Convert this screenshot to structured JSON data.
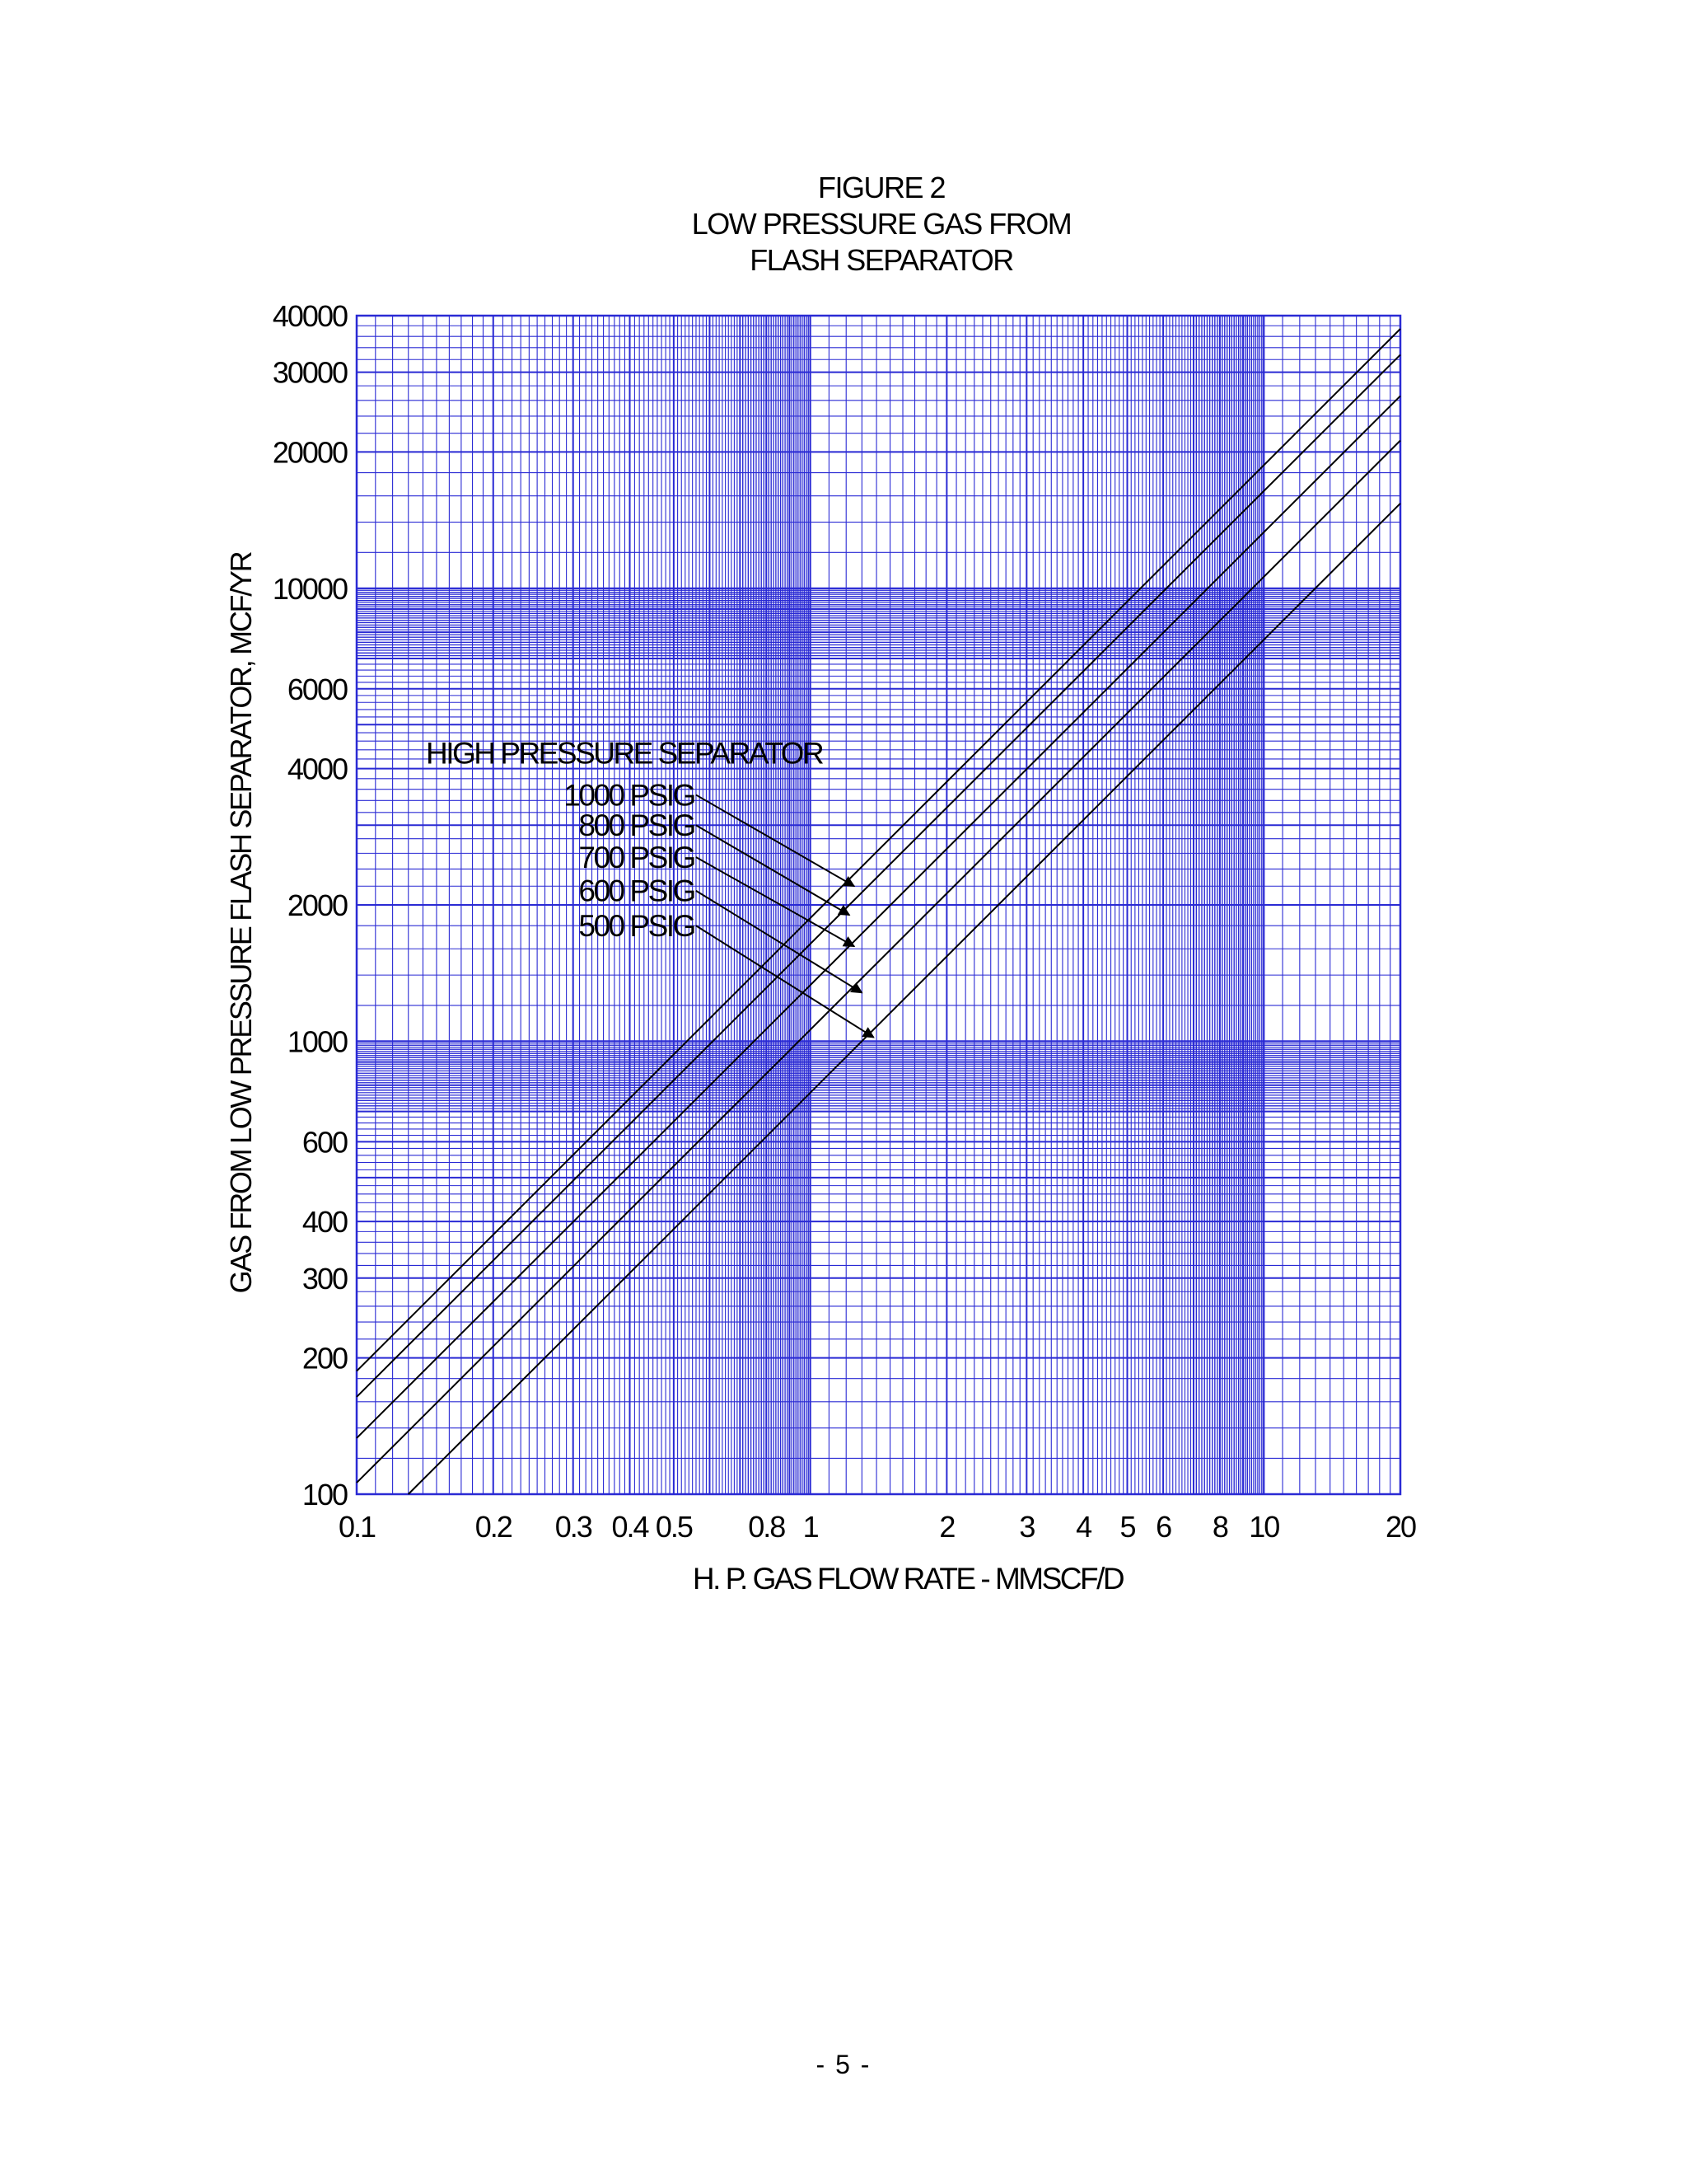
{
  "chart_data": {
    "type": "line",
    "scale": "log-log",
    "title_lines": [
      "FIGURE 2",
      "LOW PRESSURE GAS FROM",
      "FLASH SEPARATOR"
    ],
    "xlabel": "H. P. GAS FLOW RATE - MMSCF/D",
    "ylabel": "GAS FROM LOW PRESSURE FLASH SEPARATOR, MCF/YR",
    "xlim": [
      0.1,
      20
    ],
    "ylim": [
      100,
      40000
    ],
    "grid": true,
    "x_ticks": [
      {
        "value": 0.1,
        "label": "0.1"
      },
      {
        "value": 0.2,
        "label": "0.2"
      },
      {
        "value": 0.3,
        "label": "0.3"
      },
      {
        "value": 0.4,
        "label": "0.4"
      },
      {
        "value": 0.5,
        "label": "0.5"
      },
      {
        "value": 0.8,
        "label": "0.8"
      },
      {
        "value": 1,
        "label": "1"
      },
      {
        "value": 2,
        "label": "2"
      },
      {
        "value": 3,
        "label": "3"
      },
      {
        "value": 4,
        "label": "4"
      },
      {
        "value": 5,
        "label": "5"
      },
      {
        "value": 6,
        "label": "6"
      },
      {
        "value": 8,
        "label": "8"
      },
      {
        "value": 10,
        "label": "10"
      },
      {
        "value": 20,
        "label": "20"
      }
    ],
    "y_ticks": [
      {
        "value": 100,
        "label": "100"
      },
      {
        "value": 200,
        "label": "200"
      },
      {
        "value": 300,
        "label": "300"
      },
      {
        "value": 400,
        "label": "400"
      },
      {
        "value": 600,
        "label": "600"
      },
      {
        "value": 1000,
        "label": "1000"
      },
      {
        "value": 2000,
        "label": "2000"
      },
      {
        "value": 4000,
        "label": "4000"
      },
      {
        "value": 6000,
        "label": "6000"
      },
      {
        "value": 10000,
        "label": "10000"
      },
      {
        "value": 20000,
        "label": "20000"
      },
      {
        "value": 30000,
        "label": "30000"
      },
      {
        "value": 40000,
        "label": "40000"
      }
    ],
    "legend_title": "HIGH PRESSURE SEPARATOR",
    "series": [
      {
        "name": "1000 PSIG",
        "x": [
          0.1,
          20
        ],
        "y": [
          187,
          37400
        ],
        "label_anchor": [
          0.555,
          3500
        ],
        "arrow_tip": [
          1.25,
          2200
        ]
      },
      {
        "name": "800 PSIG",
        "x": [
          0.1,
          20
        ],
        "y": [
          164,
          32800
        ],
        "label_anchor": [
          0.555,
          3000
        ],
        "arrow_tip": [
          1.22,
          1900
        ]
      },
      {
        "name": "700 PSIG",
        "x": [
          0.1,
          20
        ],
        "y": [
          133,
          26600
        ],
        "label_anchor": [
          0.555,
          2550
        ],
        "arrow_tip": [
          1.25,
          1620
        ]
      },
      {
        "name": "600 PSIG",
        "x": [
          0.1,
          20
        ],
        "y": [
          106,
          21200
        ],
        "label_anchor": [
          0.555,
          2150
        ],
        "arrow_tip": [
          1.3,
          1280
        ]
      },
      {
        "name": "500 PSIG",
        "x": [
          0.13,
          20
        ],
        "y": [
          100,
          15400
        ],
        "label_anchor": [
          0.555,
          1800
        ],
        "arrow_tip": [
          1.38,
          1020
        ]
      }
    ],
    "colors": {
      "grid": "#2a2ad4",
      "lines": "#000000"
    }
  },
  "page_number": "- 5 -"
}
